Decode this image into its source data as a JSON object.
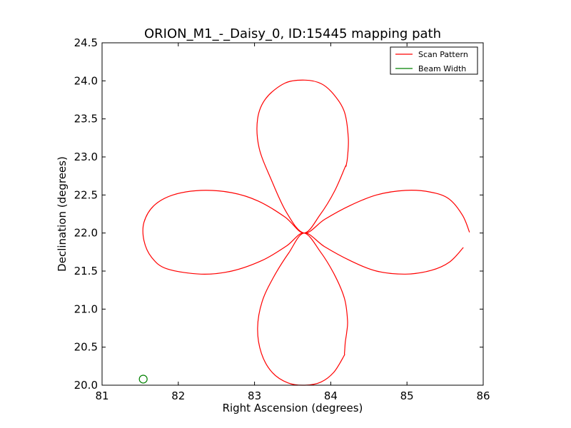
{
  "chart_data": {
    "type": "line",
    "title": "ORION_M1_-_Daisy_0, ID:15445 mapping path",
    "xlabel": "Right Ascension (degrees)",
    "ylabel": "Declination (degrees)",
    "xlim": [
      81,
      86
    ],
    "ylim": [
      20.0,
      24.5
    ],
    "x_ticks": [
      "81",
      "82",
      "83",
      "84",
      "85",
      "86"
    ],
    "y_ticks": [
      "20.0",
      "20.5",
      "21.0",
      "21.5",
      "22.0",
      "22.5",
      "23.0",
      "23.5",
      "24.0",
      "24.5"
    ],
    "grid": false,
    "legend_position": "top-right",
    "center": [
      83.65,
      22.0
    ],
    "series": [
      {
        "name": "Scan Pattern",
        "color": "#ff0000",
        "points": [
          [
            85.82,
            22.01
          ],
          [
            85.73,
            22.23
          ],
          [
            85.55,
            22.45
          ],
          [
            85.3,
            22.54
          ],
          [
            84.98,
            22.56
          ],
          [
            84.6,
            22.5
          ],
          [
            84.25,
            22.36
          ],
          [
            83.92,
            22.18
          ],
          [
            83.65,
            22.0
          ],
          [
            83.42,
            22.27
          ],
          [
            83.22,
            22.7
          ],
          [
            83.06,
            23.12
          ],
          [
            83.04,
            23.5
          ],
          [
            83.15,
            23.77
          ],
          [
            83.4,
            23.97
          ],
          [
            83.66,
            24.01
          ],
          [
            83.88,
            23.96
          ],
          [
            84.04,
            23.82
          ],
          [
            84.18,
            23.59
          ],
          [
            84.23,
            23.25
          ],
          [
            84.22,
            23.0
          ],
          [
            84.2,
            22.88
          ],
          [
            84.19,
            22.87
          ],
          [
            84.05,
            22.55
          ],
          [
            83.86,
            22.24
          ],
          [
            83.65,
            22.0
          ],
          [
            83.4,
            22.21
          ],
          [
            83.05,
            22.42
          ],
          [
            82.7,
            22.53
          ],
          [
            82.3,
            22.56
          ],
          [
            81.93,
            22.5
          ],
          [
            81.68,
            22.36
          ],
          [
            81.55,
            22.14
          ],
          [
            81.55,
            21.9
          ],
          [
            81.65,
            21.68
          ],
          [
            81.85,
            21.53
          ],
          [
            82.3,
            21.46
          ],
          [
            82.7,
            21.5
          ],
          [
            83.1,
            21.64
          ],
          [
            83.42,
            21.83
          ],
          [
            83.65,
            22.0
          ],
          [
            83.86,
            21.76
          ],
          [
            84.05,
            21.45
          ],
          [
            84.18,
            21.14
          ],
          [
            84.22,
            20.85
          ],
          [
            84.21,
            20.7
          ],
          [
            84.19,
            20.56
          ],
          [
            84.18,
            20.42
          ],
          [
            84.17,
            20.38
          ],
          [
            84.04,
            20.17
          ],
          [
            83.87,
            20.04
          ],
          [
            83.66,
            20.0
          ],
          [
            83.44,
            20.03
          ],
          [
            83.23,
            20.17
          ],
          [
            83.09,
            20.42
          ],
          [
            83.04,
            20.75
          ],
          [
            83.1,
            21.1
          ],
          [
            83.25,
            21.42
          ],
          [
            83.45,
            21.74
          ],
          [
            83.65,
            22.0
          ],
          [
            83.92,
            21.82
          ],
          [
            84.25,
            21.64
          ],
          [
            84.6,
            21.5
          ],
          [
            84.98,
            21.46
          ],
          [
            85.32,
            21.51
          ],
          [
            85.56,
            21.62
          ],
          [
            85.74,
            21.81
          ]
        ]
      },
      {
        "name": "Beam Width",
        "color": "#008000",
        "type": "circle",
        "x": 81.54,
        "y": 20.08
      }
    ]
  }
}
